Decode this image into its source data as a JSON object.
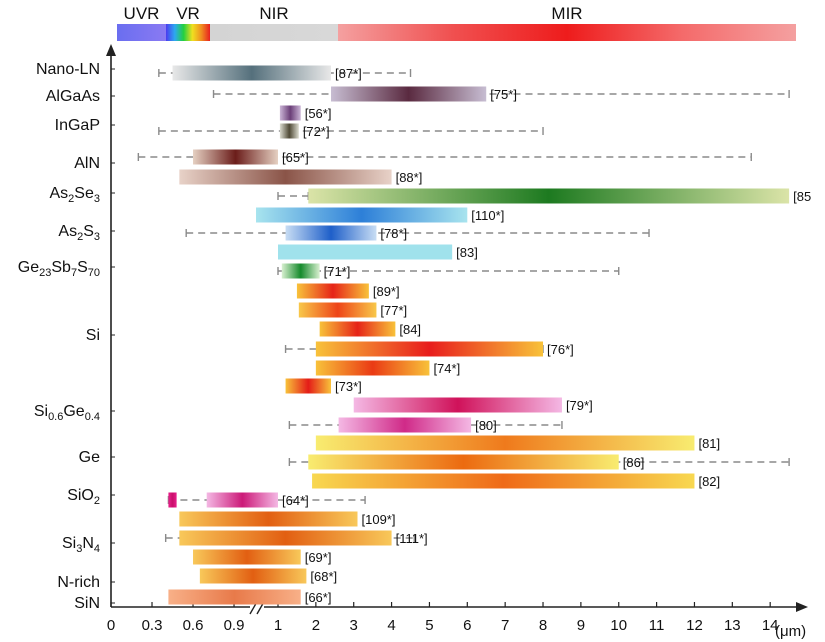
{
  "chart_data": {
    "type": "bar",
    "orientation": "horizontal",
    "x_unit": "(μm)",
    "x_ticks": [
      "0",
      "0.3",
      "0.6",
      "0.9",
      "1",
      "2",
      "3",
      "4",
      "5",
      "6",
      "7",
      "8",
      "9",
      "10",
      "11",
      "12",
      "13",
      "14"
    ],
    "bands": [
      {
        "name": "UVR",
        "range": [
          0.2,
          0.4
        ]
      },
      {
        "name": "VR",
        "range": [
          0.4,
          0.78
        ]
      },
      {
        "name": "NIR",
        "range": [
          0.78,
          2.5
        ]
      },
      {
        "name": "MIR",
        "range": [
          2.5,
          14.5
        ]
      }
    ],
    "materials": [
      {
        "name": "Nano-LN",
        "sub": []
      },
      {
        "name": "AlGaAs",
        "sub": []
      },
      {
        "name": "InGaP",
        "sub": []
      },
      {
        "name": "AlN",
        "sub": []
      },
      {
        "name": "As",
        "sub": [
          [
            "2",
            "Se"
          ],
          [
            "3",
            ""
          ]
        ]
      },
      {
        "name": "As",
        "sub": [
          [
            "2",
            "S"
          ],
          [
            "3",
            ""
          ]
        ]
      },
      {
        "name": "Ge",
        "sub": [
          [
            "23",
            "Sb"
          ],
          [
            "7",
            "S"
          ],
          [
            "70",
            ""
          ]
        ]
      },
      {
        "name": "Si",
        "sub": []
      },
      {
        "name": "Si",
        "sub": [
          [
            "0.6",
            "Ge"
          ],
          [
            "0.4",
            ""
          ]
        ]
      },
      {
        "name": "Ge",
        "sub": []
      },
      {
        "name": "SiO",
        "sub": [
          [
            "2",
            ""
          ]
        ]
      },
      {
        "name": "Si",
        "sub": [
          [
            "3",
            "N"
          ],
          [
            "4",
            ""
          ]
        ]
      },
      {
        "name": "N-rich",
        "sub": []
      },
      {
        "name": "SiN",
        "sub": []
      }
    ],
    "bars": [
      {
        "material": "Nano-LN",
        "range": [
          0.45,
          2.4
        ],
        "dashed": [
          0.35,
          4.5
        ],
        "label": "[87*]",
        "colors": [
          "#e8e8e8",
          "#55707c",
          "#e8e8e8"
        ]
      },
      {
        "material": "AlGaAs",
        "range": [
          2.4,
          6.5
        ],
        "dashed": [
          0.75,
          14.5
        ],
        "label": "[75*]",
        "colors": [
          "#c7bdd2",
          "#5a2a40",
          "#c7bdd2"
        ]
      },
      {
        "material": "InGaP",
        "range": [
          1.05,
          1.6
        ],
        "dashed": null,
        "label": "[56*]",
        "colors": [
          "#cbb5d6",
          "#6b3f78",
          "#cbb5d6"
        ]
      },
      {
        "material": "InGaP",
        "range": [
          1.05,
          1.55
        ],
        "dashed": [
          0.35,
          8.0
        ],
        "label": "[72*]",
        "colors": [
          "#dcdcd0",
          "#4f4a36",
          "#dcdcd0"
        ]
      },
      {
        "material": "AlN",
        "range": [
          0.6,
          1.0
        ],
        "dashed": [
          0.2,
          13.5
        ],
        "label": "[65*]",
        "colors": [
          "#e5d0c2",
          "#6b1d1a",
          "#e5d0c2"
        ]
      },
      {
        "material": "AlN",
        "range": [
          0.5,
          4.0
        ],
        "dashed": null,
        "label": "[88*]",
        "colors": [
          "#e8d2c8",
          "#8a5448",
          "#e8d2c8"
        ]
      },
      {
        "material": "As2Se3",
        "range": [
          1.8,
          14.5
        ],
        "dashed": [
          1.0,
          1.8
        ],
        "label": "[85",
        "colors": [
          "#dbe4a8",
          "#1d7a20",
          "#dbe4a8"
        ]
      },
      {
        "material": "As2S3",
        "range": [
          0.95,
          6.0
        ],
        "dashed": null,
        "label": "[110*]",
        "colors": [
          "#a8e4ee",
          "#2d7fd8",
          "#a8e4ee"
        ]
      },
      {
        "material": "As2S3",
        "range": [
          1.2,
          3.6
        ],
        "dashed": [
          0.55,
          10.8
        ],
        "label": "[78*]",
        "colors": [
          "#c8ddf4",
          "#1e5fc9",
          "#c8ddf4"
        ]
      },
      {
        "material": "As2S3",
        "range": [
          1.0,
          5.6
        ],
        "dashed": null,
        "label": "[83]",
        "colors": [
          "#a0e2ec",
          "#a0e2ec",
          "#a0e2ec"
        ]
      },
      {
        "material": "Ge23Sb7S70",
        "range": [
          1.1,
          2.1
        ],
        "dashed": [
          1.0,
          10.0
        ],
        "label": "[71*]",
        "colors": [
          "#d8f0d0",
          "#168a2c",
          "#d8f0d0"
        ]
      },
      {
        "material": "Si",
        "range": [
          1.5,
          3.4
        ],
        "dashed": null,
        "label": "[89*]",
        "colors": [
          "#f8c23a",
          "#e62418",
          "#f8c23a"
        ]
      },
      {
        "material": "Si",
        "range": [
          1.55,
          3.6
        ],
        "dashed": null,
        "label": "[77*]",
        "colors": [
          "#f8c84a",
          "#ee4418",
          "#f8c84a"
        ]
      },
      {
        "material": "Si",
        "range": [
          2.1,
          4.1
        ],
        "dashed": null,
        "label": "[84]",
        "colors": [
          "#f8c23a",
          "#e62418",
          "#f8c23a"
        ]
      },
      {
        "material": "Si",
        "range": [
          2.0,
          8.0
        ],
        "dashed": [
          1.2,
          8.0
        ],
        "label": "[76*]",
        "colors": [
          "#f8c23a",
          "#e81c1c",
          "#f8c23a"
        ]
      },
      {
        "material": "Si",
        "range": [
          2.0,
          5.0
        ],
        "dashed": null,
        "label": "[74*]",
        "colors": [
          "#f8c23a",
          "#ea3a14",
          "#f8c23a"
        ]
      },
      {
        "material": "Si",
        "range": [
          1.2,
          2.4
        ],
        "dashed": null,
        "label": "[73*]",
        "colors": [
          "#f8c23a",
          "#e41c18",
          "#f8c23a"
        ]
      },
      {
        "material": "Si0.6Ge0.4",
        "range": [
          3.0,
          8.5
        ],
        "dashed": null,
        "label": "[79*]",
        "colors": [
          "#f4b8e4",
          "#d0125a",
          "#f4b8e4"
        ]
      },
      {
        "material": "Si0.6Ge0.4",
        "range": [
          2.6,
          6.1
        ],
        "dashed": [
          1.3,
          8.5
        ],
        "label": "[80]",
        "colors": [
          "#f4b8e4",
          "#d02a88",
          "#f4b8e4"
        ]
      },
      {
        "material": "Ge",
        "range": [
          2.0,
          12.0
        ],
        "dashed": null,
        "label": "[81]",
        "colors": [
          "#f8ec70",
          "#ef7a1c",
          "#f8ec70"
        ]
      },
      {
        "material": "Ge",
        "range": [
          1.8,
          10.0
        ],
        "dashed": [
          1.3,
          14.5
        ],
        "label": "[86]",
        "colors": [
          "#f8ec70",
          "#ec6a10",
          "#f8ec70"
        ]
      },
      {
        "material": "Ge",
        "range": [
          1.9,
          12.0
        ],
        "dashed": null,
        "label": "[82]",
        "colors": [
          "#f8d850",
          "#ef6a18",
          "#f8d850"
        ]
      },
      {
        "material": "SiO2",
        "range": [
          0.42,
          0.48
        ],
        "dashed": [
          0.42,
          3.3
        ],
        "label": "",
        "colors": [
          "#e8208c",
          "#c80f6a",
          "#e8208c"
        ]
      },
      {
        "material": "SiO2",
        "range": [
          0.7,
          1.0
        ],
        "dashed": null,
        "label": "[64*]",
        "colors": [
          "#f4b8e4",
          "#cc1a78",
          "#f4b8e4"
        ]
      },
      {
        "material": "Si3N4",
        "range": [
          0.5,
          3.1
        ],
        "dashed": null,
        "label": "[109*]",
        "colors": [
          "#f8c85a",
          "#e25f12",
          "#f8c85a"
        ]
      },
      {
        "material": "Si3N4",
        "range": [
          0.5,
          4.0
        ],
        "dashed": [
          0.4,
          4.6
        ],
        "label": "[111*]",
        "colors": [
          "#f8c85a",
          "#e25f12",
          "#f8c85a"
        ]
      },
      {
        "material": "Si3N4",
        "range": [
          0.6,
          1.6
        ],
        "dashed": null,
        "label": "[69*]",
        "colors": [
          "#f8c85a",
          "#e25f12",
          "#f8c85a"
        ]
      },
      {
        "material": "N-rich SiN",
        "range": [
          0.65,
          1.75
        ],
        "dashed": null,
        "label": "[68*]",
        "colors": [
          "#f8c85a",
          "#e25f12",
          "#f8c85a"
        ]
      },
      {
        "material": "N-rich SiN",
        "range": [
          0.42,
          1.6
        ],
        "dashed": null,
        "label": "[66*]",
        "colors": [
          "#f8b088",
          "#e87a4a",
          "#f8b088"
        ]
      }
    ]
  }
}
